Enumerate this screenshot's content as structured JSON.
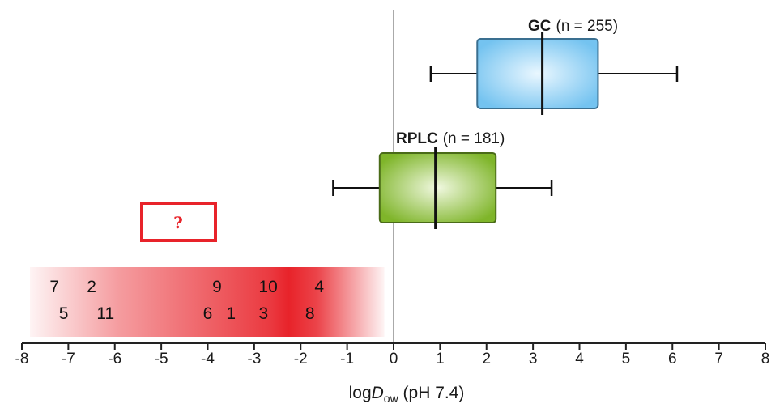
{
  "chart_data": {
    "type": "boxplot",
    "xlabel_prefix": "log",
    "xlabel_var": "D",
    "xlabel_sub": "ow",
    "xlabel_suffix": " (pH 7.4)",
    "xlim": [
      -8,
      8
    ],
    "x_ticks": [
      "-8",
      "-7",
      "-6",
      "-5",
      "-4",
      "-3",
      "-2",
      "-1",
      "0",
      "1",
      "2",
      "3",
      "4",
      "5",
      "6",
      "7",
      "8"
    ],
    "boxes": [
      {
        "name": "GC",
        "n_text": "(n = 255)",
        "whisker_low": 0.8,
        "q1": 1.8,
        "median": 3.2,
        "q3": 4.4,
        "whisker_high": 6.1,
        "fill_light": "#eaf7ff",
        "fill_dark": "#74c3f0",
        "stroke": "#3a6f90"
      },
      {
        "name": "RPLC",
        "n_text": "(n = 181)",
        "whisker_low": -1.3,
        "q1": -0.3,
        "median": 0.9,
        "q3": 2.2,
        "whisker_high": 3.4,
        "fill_light": "#f0f8e0",
        "fill_dark": "#7fb52a",
        "stroke": "#4a6b18"
      }
    ],
    "unknown_region": {
      "x_from": -8,
      "x_to": -0.2,
      "color": "#e8232a",
      "peak_x": -2.3,
      "question_mark": "?"
    },
    "compounds": [
      {
        "label": "7",
        "x": -7.3,
        "row": 1
      },
      {
        "label": "2",
        "x": -6.5,
        "row": 1
      },
      {
        "label": "9",
        "x": -3.8,
        "row": 1
      },
      {
        "label": "10",
        "x": -2.7,
        "row": 1
      },
      {
        "label": "4",
        "x": -1.6,
        "row": 1
      },
      {
        "label": "5",
        "x": -7.1,
        "row": 2
      },
      {
        "label": "11",
        "x": -6.2,
        "row": 2
      },
      {
        "label": "6",
        "x": -4.0,
        "row": 2
      },
      {
        "label": "1",
        "x": -3.5,
        "row": 2
      },
      {
        "label": "3",
        "x": -2.8,
        "row": 2
      },
      {
        "label": "8",
        "x": -1.8,
        "row": 2
      }
    ]
  },
  "colors": {
    "axis": "#222222",
    "zero_line": "#aaaaaa",
    "question_box": "#e8232a"
  }
}
